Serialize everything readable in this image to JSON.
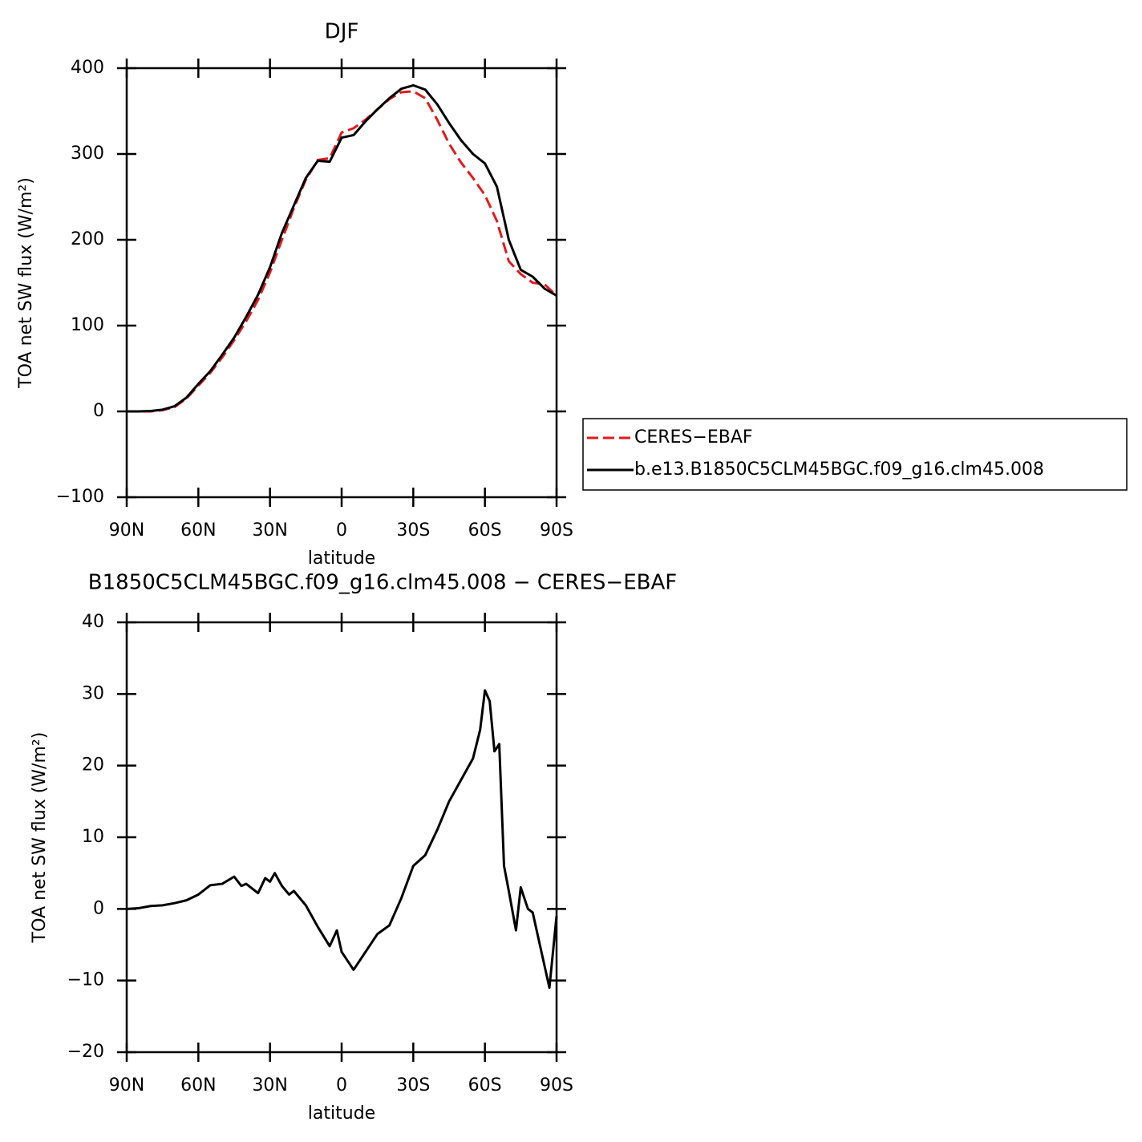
{
  "chart_data": [
    {
      "type": "line",
      "title": "DJF",
      "xlabel": "latitude",
      "ylabel": "TOA net SW flux (W/m²)",
      "x": [
        90,
        85,
        80,
        75,
        70,
        65,
        60,
        55,
        50,
        45,
        40,
        35,
        30,
        25,
        20,
        15,
        10,
        5,
        0,
        -5,
        -10,
        -15,
        -20,
        -25,
        -30,
        -35,
        -40,
        -45,
        -50,
        -55,
        -60,
        -65,
        -70,
        -75,
        -80,
        -85,
        -90
      ],
      "series": [
        {
          "name": "CERES−EBAF",
          "color": "#e3191c",
          "line_style": "dashed",
          "values": [
            0,
            0,
            0,
            1.5,
            5,
            15,
            30,
            45,
            63,
            83,
            105,
            130,
            162,
            200,
            237,
            270,
            293,
            295,
            325,
            330,
            340,
            352,
            364,
            372,
            373,
            365,
            340,
            312,
            290,
            272,
            252,
            222,
            175,
            160,
            150,
            148,
            135
          ]
        },
        {
          "name": "b.e13.B1850C5CLM45BGC.f09_g16.clm45.008",
          "color": "#000000",
          "line_style": "solid",
          "values": [
            0,
            0,
            0.5,
            2,
            6,
            16,
            32,
            47,
            66,
            86,
            110,
            136,
            168,
            208,
            240,
            272,
            292,
            291,
            319,
            322,
            338,
            352,
            365,
            376,
            380,
            375,
            358,
            336,
            316,
            300,
            289,
            262,
            200,
            165,
            157,
            143,
            135
          ]
        }
      ],
      "xlim": [
        90,
        -90
      ],
      "xticks": [
        {
          "value": 90,
          "label": "90N"
        },
        {
          "value": 60,
          "label": "60N"
        },
        {
          "value": 30,
          "label": "30N"
        },
        0,
        {
          "value": -30,
          "label": "30S"
        },
        {
          "value": -60,
          "label": "60S"
        },
        {
          "value": -90,
          "label": "90S"
        }
      ],
      "ylim": [
        -100,
        400
      ],
      "yticks": [
        {
          "value": -100,
          "label": "−100"
        },
        0,
        100,
        200,
        300,
        400
      ],
      "legend": "right"
    },
    {
      "type": "line",
      "title": "B1850C5CLM45BGC.f09_g16.clm45.008 − CERES−EBAF",
      "xlabel": "latitude",
      "ylabel": "TOA net SW flux (W/m²)",
      "x": [
        90,
        85,
        80,
        75,
        70,
        65,
        60,
        55,
        50,
        45,
        42,
        40,
        35,
        32,
        30,
        28,
        25,
        22,
        20,
        15,
        10,
        5,
        2,
        0,
        -5,
        -10,
        -15,
        -20,
        -25,
        -30,
        -35,
        -40,
        -45,
        -50,
        -55,
        -58,
        -60,
        -62,
        -64,
        -66,
        -68,
        -70,
        -73,
        -75,
        -78,
        -80,
        -85,
        -87,
        -90
      ],
      "series": [
        {
          "color": "#000000",
          "line_style": "solid",
          "values": [
            0,
            0.1,
            0.4,
            0.5,
            0.8,
            1.2,
            2,
            3.3,
            3.5,
            4.5,
            3.2,
            3.5,
            2.2,
            4.3,
            3.8,
            5,
            3.2,
            2,
            2.5,
            0.5,
            -2.5,
            -5.2,
            -3,
            -6,
            -8.5,
            -6,
            -3.5,
            -2.3,
            1.5,
            6,
            7.5,
            11,
            15,
            18,
            21,
            25,
            30.5,
            29,
            22,
            23,
            6,
            2.5,
            -3,
            3,
            0,
            -0.5,
            -8,
            -11,
            -1
          ]
        }
      ],
      "xlim": [
        90,
        -90
      ],
      "xticks": [
        {
          "value": 90,
          "label": "90N"
        },
        {
          "value": 60,
          "label": "60N"
        },
        {
          "value": 30,
          "label": "30N"
        },
        0,
        {
          "value": -30,
          "label": "30S"
        },
        {
          "value": -60,
          "label": "60S"
        },
        {
          "value": -90,
          "label": "90S"
        }
      ],
      "ylim": [
        -20,
        40
      ],
      "yticks": [
        {
          "value": -20,
          "label": "−20"
        },
        {
          "value": -10,
          "label": "−10"
        },
        0,
        10,
        20,
        30,
        40
      ]
    }
  ]
}
